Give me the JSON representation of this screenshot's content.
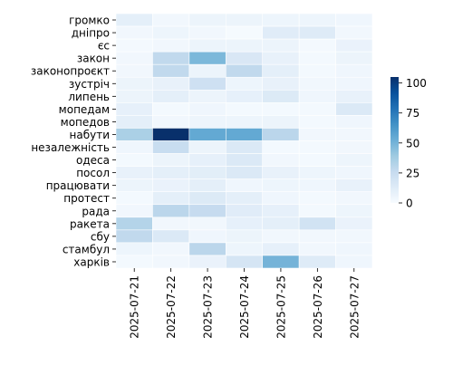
{
  "chart_data": {
    "type": "heatmap",
    "x_categories": [
      "2025-07-21",
      "2025-07-22",
      "2025-07-23",
      "2025-07-24",
      "2025-07-25",
      "2025-07-26",
      "2025-07-27"
    ],
    "y_categories": [
      "громко",
      "дніпро",
      "єс",
      "закон",
      "законопроєкт",
      "зустріч",
      "липень",
      "мопедам",
      "мопедов",
      "набути",
      "незалежність",
      "одеса",
      "посол",
      "працювати",
      "протест",
      "рада",
      "ракета",
      "сбу",
      "стамбул",
      "харків"
    ],
    "values": [
      [
        10,
        3,
        6,
        6,
        5,
        5,
        4
      ],
      [
        3,
        5,
        3,
        1,
        12,
        13,
        3
      ],
      [
        2,
        3,
        6,
        6,
        6,
        2,
        7
      ],
      [
        3,
        28,
        48,
        16,
        8,
        2,
        6
      ],
      [
        3,
        28,
        6,
        28,
        10,
        2,
        4
      ],
      [
        6,
        8,
        22,
        5,
        8,
        3,
        4
      ],
      [
        6,
        10,
        6,
        9,
        14,
        4,
        8
      ],
      [
        9,
        2,
        4,
        2,
        2,
        2,
        15
      ],
      [
        10,
        3,
        5,
        5,
        6,
        2,
        4
      ],
      [
        35,
        105,
        55,
        55,
        30,
        3,
        3
      ],
      [
        4,
        25,
        6,
        15,
        2,
        2,
        3
      ],
      [
        2,
        6,
        9,
        15,
        3,
        2,
        5
      ],
      [
        8,
        10,
        11,
        15,
        8,
        5,
        4
      ],
      [
        6,
        7,
        10,
        4,
        5,
        4,
        8
      ],
      [
        2,
        10,
        14,
        10,
        4,
        2,
        3
      ],
      [
        3,
        30,
        26,
        12,
        9,
        2,
        5
      ],
      [
        32,
        3,
        3,
        9,
        10,
        20,
        7
      ],
      [
        28,
        15,
        4,
        6,
        3,
        3,
        3
      ],
      [
        5,
        3,
        30,
        5,
        9,
        3,
        4
      ],
      [
        2,
        3,
        7,
        18,
        50,
        13,
        4
      ]
    ],
    "colorbar": {
      "min": 0,
      "max": 105,
      "ticks": [
        0,
        25,
        50,
        75,
        100
      ]
    },
    "colormap": "Blues",
    "colors": {
      "low": "#f7fbff",
      "high": "#08306b"
    }
  }
}
